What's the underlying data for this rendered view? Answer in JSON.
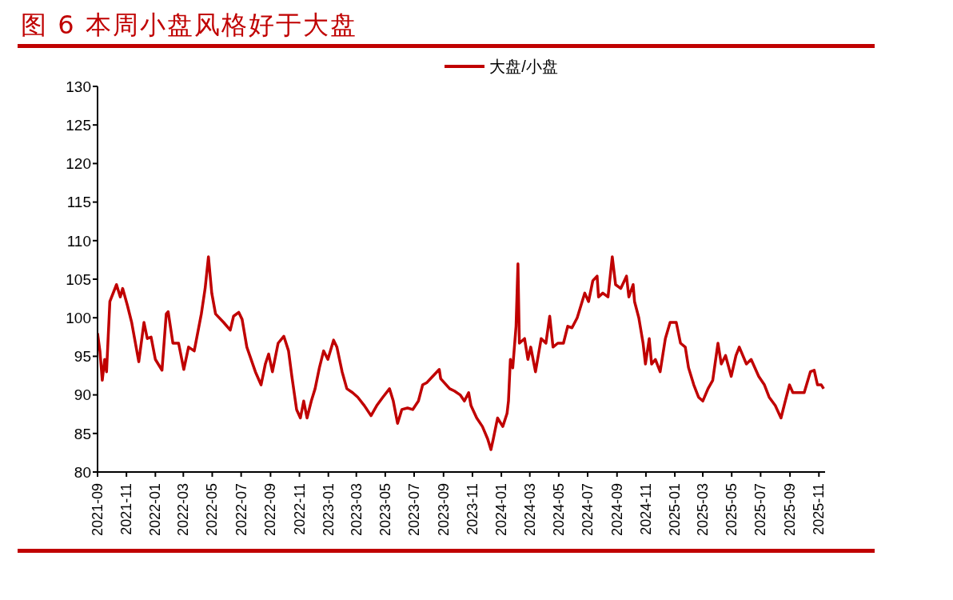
{
  "chart_data": {
    "type": "line",
    "title": "图 6 本周小盘风格好于大盘",
    "x": [
      "2021-09-01",
      "2021-09-06",
      "2021-09-11",
      "2021-09-16",
      "2021-09-20",
      "2021-09-27",
      "2021-10-11",
      "2021-10-19",
      "2021-10-24",
      "2021-11-03",
      "2021-11-12",
      "2021-11-27",
      "2021-12-08",
      "2021-12-15",
      "2021-12-23",
      "2022-01-01",
      "2022-01-15",
      "2022-01-24",
      "2022-01-28",
      "2022-02-07",
      "2022-02-19",
      "2022-03-02",
      "2022-03-12",
      "2022-03-24",
      "2022-04-08",
      "2022-04-16",
      "2022-04-23",
      "2022-04-30",
      "2022-05-08",
      "2022-05-25",
      "2022-06-08",
      "2022-06-15",
      "2022-06-26",
      "2022-07-03",
      "2022-07-13",
      "2022-07-31",
      "2022-08-12",
      "2022-08-21",
      "2022-08-28",
      "2022-09-05",
      "2022-09-17",
      "2022-09-29",
      "2022-10-09",
      "2022-10-16",
      "2022-10-26",
      "2022-11-03",
      "2022-11-10",
      "2022-11-17",
      "2022-11-26",
      "2022-12-04",
      "2022-12-13",
      "2022-12-22",
      "2022-12-31",
      "2023-01-12",
      "2023-01-19",
      "2023-01-30",
      "2023-02-09",
      "2023-02-21",
      "2023-03-04",
      "2023-03-18",
      "2023-04-01",
      "2023-04-13",
      "2023-04-26",
      "2023-05-10",
      "2023-05-18",
      "2023-05-27",
      "2023-06-05",
      "2023-06-17",
      "2023-06-28",
      "2023-07-10",
      "2023-07-19",
      "2023-07-28",
      "2023-08-09",
      "2023-08-23",
      "2023-08-26",
      "2023-09-14",
      "2023-09-24",
      "2023-10-06",
      "2023-10-15",
      "2023-10-24",
      "2023-10-29",
      "2023-11-10",
      "2023-11-22",
      "2023-12-03",
      "2023-12-10",
      "2023-12-15",
      "2023-12-24",
      "2024-01-04",
      "2024-01-13",
      "2024-01-16",
      "2024-01-20",
      "2024-01-25",
      "2024-02-01",
      "2024-02-05",
      "2024-02-08",
      "2024-02-19",
      "2024-02-26",
      "2024-03-03",
      "2024-03-13",
      "2024-03-25",
      "2024-04-04",
      "2024-04-12",
      "2024-04-19",
      "2024-04-29",
      "2024-05-11",
      "2024-05-20",
      "2024-05-29",
      "2024-06-09",
      "2024-06-25",
      "2024-07-03",
      "2024-07-12",
      "2024-07-21",
      "2024-07-24",
      "2024-08-02",
      "2024-08-13",
      "2024-08-22",
      "2024-08-29",
      "2024-09-09",
      "2024-09-21",
      "2024-09-26",
      "2024-10-05",
      "2024-10-08",
      "2024-10-17",
      "2024-10-26",
      "2024-10-31",
      "2024-11-08",
      "2024-11-13",
      "2024-11-21",
      "2024-12-01",
      "2024-12-12",
      "2024-12-22",
      "2025-01-04",
      "2025-01-13",
      "2025-01-23",
      "2025-01-30",
      "2025-02-10",
      "2025-02-20",
      "2025-03-01",
      "2025-03-12",
      "2025-03-22",
      "2025-04-02",
      "2025-04-09",
      "2025-04-18",
      "2025-04-30",
      "2025-05-10",
      "2025-05-17",
      "2025-06-01",
      "2025-06-11",
      "2025-06-27",
      "2025-07-09",
      "2025-07-19",
      "2025-08-01",
      "2025-08-13",
      "2025-08-22",
      "2025-08-31",
      "2025-09-07",
      "2025-09-20",
      "2025-10-01",
      "2025-10-14",
      "2025-10-22",
      "2025-10-29",
      "2025-11-06",
      "2025-11-11"
    ],
    "series": [
      {
        "name": "大盘/小盘",
        "color": "#c00000",
        "values": [
          98.0,
          95.7,
          91.9,
          94.6,
          93.0,
          102.1,
          104.3,
          102.7,
          103.8,
          101.6,
          99.4,
          94.3,
          99.4,
          97.3,
          97.5,
          94.6,
          93.2,
          100.5,
          100.8,
          96.7,
          96.7,
          93.3,
          96.2,
          95.7,
          100.5,
          103.8,
          107.9,
          103.2,
          100.5,
          99.4,
          98.4,
          100.2,
          100.7,
          99.8,
          96.2,
          93.0,
          91.3,
          94.0,
          95.3,
          93.0,
          96.7,
          97.6,
          95.7,
          92.4,
          88.1,
          87.0,
          89.2,
          87.0,
          89.2,
          90.8,
          93.5,
          95.7,
          94.6,
          97.1,
          96.2,
          93.0,
          90.8,
          90.3,
          89.7,
          88.6,
          87.3,
          88.6,
          89.7,
          90.8,
          89.2,
          86.3,
          88.1,
          88.3,
          88.1,
          89.2,
          91.3,
          91.6,
          92.4,
          93.3,
          92.1,
          90.8,
          90.5,
          90.0,
          89.2,
          90.3,
          88.6,
          87.0,
          85.9,
          84.3,
          82.9,
          84.3,
          87.0,
          85.9,
          87.6,
          89.2,
          94.6,
          93.5,
          98.9,
          107.0,
          96.7,
          97.3,
          94.6,
          96.2,
          93.0,
          97.3,
          96.7,
          100.2,
          96.2,
          96.7,
          96.7,
          98.9,
          98.7,
          100.0,
          103.2,
          102.1,
          104.8,
          105.4,
          102.7,
          103.2,
          102.7,
          107.9,
          104.3,
          103.8,
          105.4,
          102.7,
          104.3,
          102.1,
          100.0,
          96.7,
          94.0,
          97.3,
          94.0,
          94.6,
          93.0,
          97.3,
          99.4,
          99.4,
          96.7,
          96.2,
          93.5,
          91.3,
          89.7,
          89.2,
          90.8,
          91.9,
          96.7,
          94.0,
          95.1,
          92.4,
          95.1,
          96.2,
          94.0,
          94.6,
          92.4,
          91.3,
          89.7,
          88.6,
          87.0,
          89.2,
          91.3,
          90.3,
          90.3,
          90.3,
          93.0,
          93.2,
          91.3,
          91.3,
          90.8
        ]
      }
    ],
    "xlim": [
      "2021-09-01",
      "2025-11-14"
    ],
    "xticks": [
      "2021-09",
      "2021-11",
      "2022-01",
      "2022-03",
      "2022-05",
      "2022-07",
      "2022-09",
      "2022-11",
      "2023-01",
      "2023-03",
      "2023-05",
      "2023-07",
      "2023-09",
      "2023-11",
      "2024-01",
      "2024-03",
      "2024-05",
      "2024-07",
      "2024-09",
      "2024-11",
      "2025-01",
      "2025-03",
      "2025-05",
      "2025-07",
      "2025-09",
      "2025-11"
    ],
    "ylim": [
      80,
      130
    ],
    "yticks": [
      80,
      85,
      90,
      95,
      100,
      105,
      110,
      115,
      120,
      125,
      130
    ],
    "grid": false,
    "legend": "top"
  }
}
